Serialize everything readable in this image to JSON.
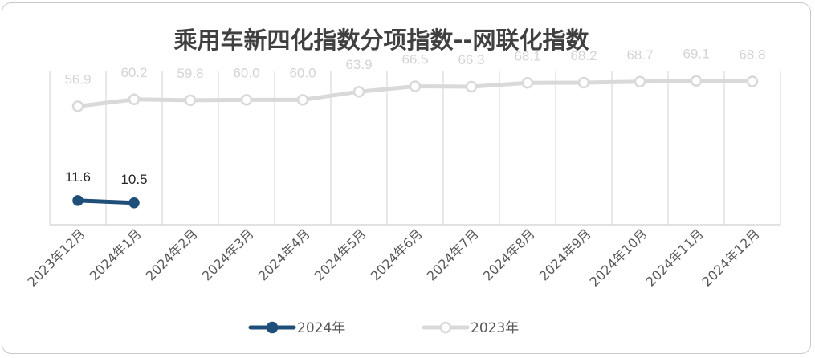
{
  "chart_data": {
    "type": "line",
    "title": "乘用车新四化指数分项指数--网联化指数",
    "categories": [
      "2023年12月",
      "2024年1月",
      "2024年2月",
      "2024年3月",
      "2024年4月",
      "2024年5月",
      "2024年6月",
      "2024年7月",
      "2024年8月",
      "2024年9月",
      "2024年10月",
      "2024年11月",
      "2024年12月"
    ],
    "series": [
      {
        "name": "2024年",
        "color": "#1f4e79",
        "values": [
          11.6,
          10.5,
          null,
          null,
          null,
          null,
          null,
          null,
          null,
          null,
          null,
          null,
          null
        ]
      },
      {
        "name": "2023年",
        "color": "#d9d9d9",
        "values": [
          56.9,
          60.2,
          59.8,
          60.0,
          60.0,
          63.9,
          66.5,
          66.3,
          68.1,
          68.2,
          68.7,
          69.1,
          68.8
        ]
      }
    ],
    "grid": "vertical",
    "legend": "bottom",
    "data_labels": true
  }
}
